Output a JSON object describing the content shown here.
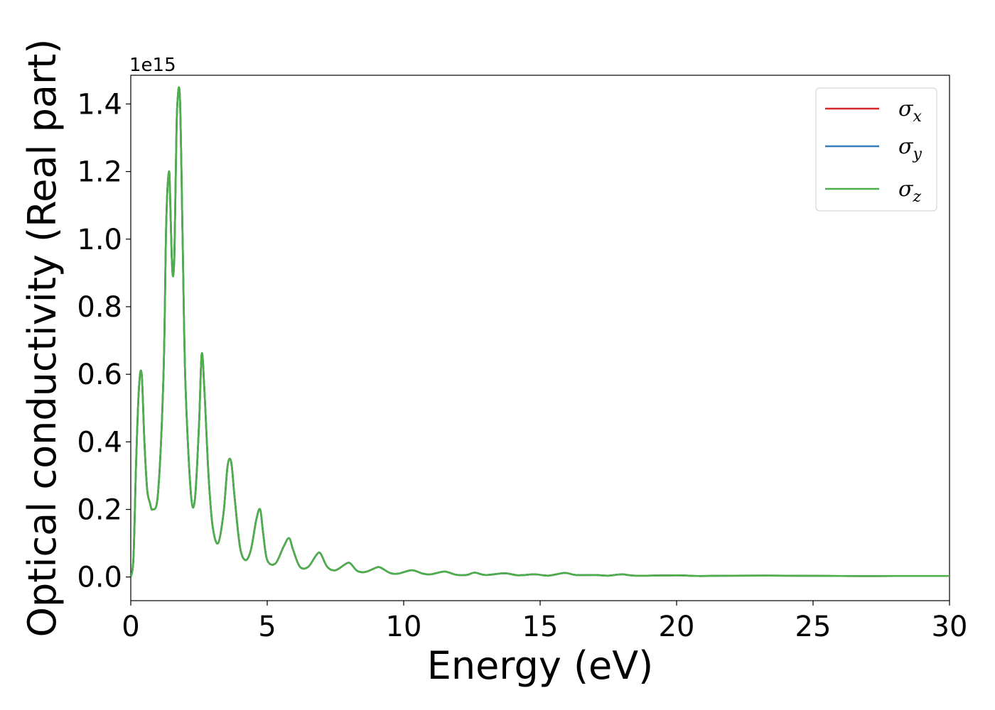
{
  "chart_data": {
    "type": "line",
    "title": "",
    "xlabel": "Energy (eV)",
    "ylabel": "Optical conductivity (Real part)",
    "y_offset_label": "1e15",
    "xlim": [
      0,
      30
    ],
    "ylim": [
      -0.07,
      1.485
    ],
    "xticks": [
      0,
      5,
      10,
      15,
      20,
      25,
      30
    ],
    "xtick_labels": [
      "0",
      "5",
      "10",
      "15",
      "20",
      "25",
      "30"
    ],
    "yticks": [
      0.0,
      0.2,
      0.4,
      0.6,
      0.8,
      1.0,
      1.2,
      1.4
    ],
    "ytick_labels": [
      "0.0",
      "0.2",
      "0.4",
      "0.6",
      "0.8",
      "1.0",
      "1.2",
      "1.4"
    ],
    "grid": false,
    "legend_position": "top-right",
    "x": [
      0,
      0.1,
      0.2,
      0.3,
      0.4,
      0.5,
      0.6,
      0.7,
      0.8,
      1.0,
      1.2,
      1.3,
      1.4,
      1.45,
      1.5,
      1.55,
      1.6,
      1.65,
      1.7,
      1.8,
      1.9,
      2.0,
      2.2,
      2.35,
      2.5,
      2.6,
      2.7,
      2.85,
      3.0,
      3.2,
      3.4,
      3.55,
      3.68,
      3.8,
      4.0,
      4.2,
      4.4,
      4.6,
      4.74,
      4.85,
      5.0,
      5.3,
      5.6,
      5.8,
      5.95,
      6.2,
      6.5,
      6.8,
      6.95,
      7.2,
      7.5,
      7.9,
      8.05,
      8.3,
      8.6,
      9.0,
      9.15,
      9.5,
      9.8,
      10.3,
      10.7,
      11.0,
      11.5,
      11.9,
      12.3,
      12.6,
      13.0,
      13.7,
      14.2,
      14.8,
      15.3,
      15.9,
      16.3,
      17.0,
      17.5,
      18.0,
      18.5,
      20.0,
      20.8,
      22.0,
      24.0,
      26.0,
      28.0,
      30.0
    ],
    "series": [
      {
        "name": "σ",
        "sub": "x",
        "color": "#d62728",
        "values": [
          0.0,
          0.06,
          0.35,
          0.56,
          0.6,
          0.4,
          0.26,
          0.22,
          0.2,
          0.25,
          0.6,
          1.05,
          1.2,
          1.1,
          0.95,
          0.89,
          0.96,
          1.2,
          1.39,
          1.42,
          1.0,
          0.58,
          0.25,
          0.23,
          0.45,
          0.66,
          0.55,
          0.3,
          0.15,
          0.1,
          0.19,
          0.33,
          0.34,
          0.24,
          0.09,
          0.05,
          0.08,
          0.17,
          0.2,
          0.13,
          0.05,
          0.04,
          0.09,
          0.115,
          0.08,
          0.03,
          0.03,
          0.065,
          0.07,
          0.03,
          0.02,
          0.04,
          0.04,
          0.018,
          0.015,
          0.028,
          0.028,
          0.012,
          0.01,
          0.02,
          0.01,
          0.008,
          0.016,
          0.007,
          0.006,
          0.013,
          0.006,
          0.011,
          0.005,
          0.008,
          0.004,
          0.012,
          0.006,
          0.006,
          0.004,
          0.008,
          0.004,
          0.005,
          0.003,
          0.004,
          0.004,
          0.003,
          0.003,
          0.003
        ]
      },
      {
        "name": "σ",
        "sub": "y",
        "color": "#377eb8",
        "values": [
          0.0,
          0.06,
          0.35,
          0.56,
          0.6,
          0.4,
          0.26,
          0.22,
          0.2,
          0.25,
          0.6,
          1.05,
          1.2,
          1.1,
          0.95,
          0.89,
          0.96,
          1.2,
          1.39,
          1.42,
          1.0,
          0.58,
          0.25,
          0.23,
          0.45,
          0.66,
          0.55,
          0.3,
          0.15,
          0.1,
          0.19,
          0.33,
          0.34,
          0.24,
          0.09,
          0.05,
          0.08,
          0.17,
          0.2,
          0.13,
          0.05,
          0.04,
          0.09,
          0.115,
          0.08,
          0.03,
          0.03,
          0.065,
          0.07,
          0.03,
          0.02,
          0.04,
          0.04,
          0.018,
          0.015,
          0.028,
          0.028,
          0.012,
          0.01,
          0.02,
          0.01,
          0.008,
          0.016,
          0.007,
          0.006,
          0.013,
          0.006,
          0.011,
          0.005,
          0.008,
          0.004,
          0.012,
          0.006,
          0.006,
          0.004,
          0.008,
          0.004,
          0.005,
          0.003,
          0.004,
          0.004,
          0.003,
          0.003,
          0.003
        ]
      },
      {
        "name": "σ",
        "sub": "z",
        "color": "#4daf4a",
        "values": [
          0.0,
          0.06,
          0.35,
          0.56,
          0.6,
          0.4,
          0.26,
          0.22,
          0.2,
          0.25,
          0.6,
          1.05,
          1.2,
          1.1,
          0.95,
          0.89,
          0.96,
          1.2,
          1.39,
          1.42,
          1.0,
          0.58,
          0.25,
          0.23,
          0.45,
          0.66,
          0.55,
          0.3,
          0.15,
          0.1,
          0.19,
          0.33,
          0.34,
          0.24,
          0.09,
          0.05,
          0.08,
          0.17,
          0.2,
          0.13,
          0.05,
          0.04,
          0.09,
          0.115,
          0.08,
          0.03,
          0.03,
          0.065,
          0.07,
          0.03,
          0.02,
          0.04,
          0.04,
          0.018,
          0.015,
          0.028,
          0.028,
          0.012,
          0.01,
          0.02,
          0.01,
          0.008,
          0.016,
          0.007,
          0.006,
          0.013,
          0.006,
          0.011,
          0.005,
          0.008,
          0.004,
          0.012,
          0.006,
          0.006,
          0.004,
          0.008,
          0.004,
          0.005,
          0.003,
          0.004,
          0.004,
          0.003,
          0.003,
          0.003
        ]
      }
    ]
  }
}
